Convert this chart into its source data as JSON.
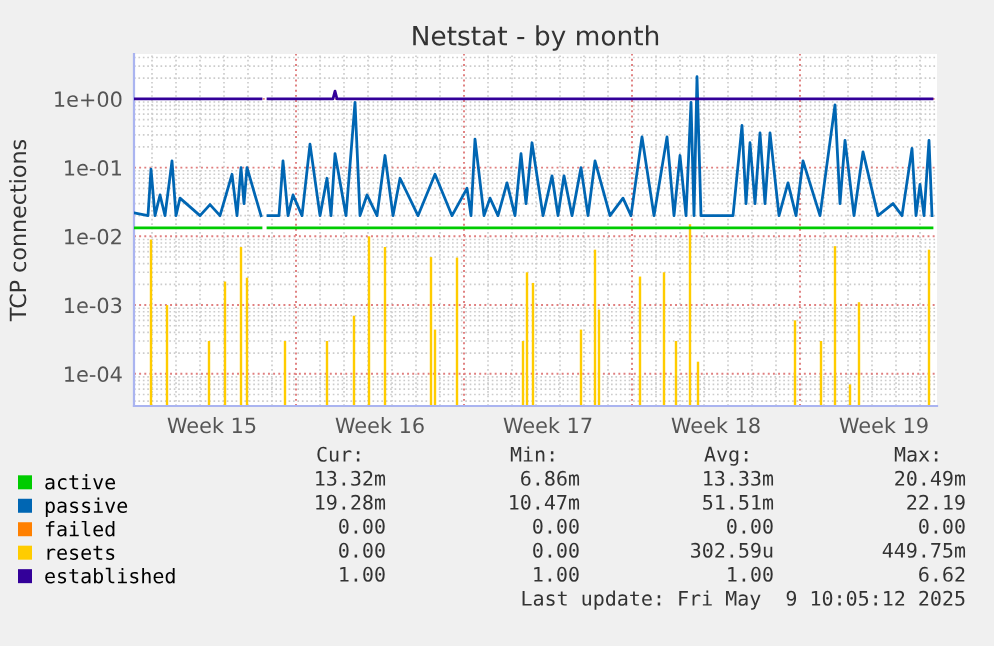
{
  "chart_data": {
    "type": "line",
    "title": "Netstat - by month",
    "ylabel": "TCP connections",
    "log": "y",
    "grid": true,
    "legend": "bottom left",
    "line_style": "solid",
    "marker": "none",
    "xlim": [
      "2025-04-06T06:00",
      "2025-05-09T17:00"
    ],
    "xticks": [
      {
        "value": "2025-04-09T12:00",
        "label": "Week 15"
      },
      {
        "value": "2025-04-13",
        "label": null
      },
      {
        "value": "2025-04-16T12:00",
        "label": "Week 16"
      },
      {
        "value": "2025-04-20",
        "label": null
      },
      {
        "value": "2025-04-23T12:00",
        "label": "Week 17"
      },
      {
        "value": "2025-04-27",
        "label": null
      },
      {
        "value": "2025-04-30T12:00",
        "label": "Week 18"
      },
      {
        "value": "2025-05-04",
        "label": null
      },
      {
        "value": "2025-05-07T12:00",
        "label": "Week 19"
      }
    ],
    "ylim": [
      3.4e-05,
      4.5
    ],
    "yticks": [
      {
        "value": 0.0001,
        "label": "1e-04"
      },
      {
        "value": 0.001,
        "label": "1e-03"
      },
      {
        "value": 0.01,
        "label": "1e-02"
      },
      {
        "value": 0.1,
        "label": "1e-01"
      },
      {
        "value": 1,
        "label": "1e+00"
      }
    ],
    "series": [
      {
        "name": "active",
        "color": "#00cc00",
        "x": [
          "2025-04-06T06:00",
          "2025-04-11T13:00",
          "2025-04-11T16:00",
          "2025-04-11T20:00",
          "2025-05-09T12:00"
        ],
        "values": [
          0.0133,
          0.0133,
          null,
          0.0133,
          0.0133
        ]
      },
      {
        "name": "passive",
        "color": "#0066b3",
        "x": [
          "2025-04-06T06:00",
          "2025-04-06T20:00",
          "2025-04-06T23:00",
          "2025-04-07T03:00",
          "2025-04-07T08:00",
          "2025-04-07T13:00",
          "2025-04-07T20:00",
          "2025-04-08T00:00",
          "2025-04-08T04:00",
          "2025-04-09T00:00",
          "2025-04-09T10:00",
          "2025-04-09T20:00",
          "2025-04-10T08:00",
          "2025-04-10T13:00",
          "2025-04-10T17:00",
          "2025-04-10T20:00",
          "2025-04-10T23:00",
          "2025-04-11T13:00",
          "2025-04-11T16:00",
          "2025-04-11T20:00",
          "2025-04-12T07:00",
          "2025-04-12T11:00",
          "2025-04-12T16:00",
          "2025-04-12T21:00",
          "2025-04-13T06:00",
          "2025-04-13T14:00",
          "2025-04-14T00:00",
          "2025-04-14T07:00",
          "2025-04-14T11:00",
          "2025-04-14T15:00",
          "2025-04-15T02:00",
          "2025-04-15T11:00",
          "2025-04-15T16:00",
          "2025-04-15T23:00",
          "2025-04-16T09:00",
          "2025-04-16T17:00",
          "2025-04-17T01:00",
          "2025-04-17T08:00",
          "2025-04-18T02:00",
          "2025-04-18T19:00",
          "2025-04-19T12:00",
          "2025-04-20T03:00",
          "2025-04-20T07:00",
          "2025-04-20T11:00",
          "2025-04-20T20:00",
          "2025-04-21T02:00",
          "2025-04-21T10:00",
          "2025-04-21T19:00",
          "2025-04-22T03:00",
          "2025-04-22T09:00",
          "2025-04-22T14:00",
          "2025-04-22T20:00",
          "2025-04-23T07:00",
          "2025-04-23T16:00",
          "2025-04-23T22:00",
          "2025-04-24T04:00",
          "2025-04-24T12:00",
          "2025-04-24T21:00",
          "2025-04-25T04:00",
          "2025-04-25T11:00",
          "2025-04-26T02:00",
          "2025-04-26T15:00",
          "2025-04-26T23:00",
          "2025-04-27T10:00",
          "2025-04-27T22:00",
          "2025-04-28T11:00",
          "2025-04-28T18:00",
          "2025-04-29T00:00",
          "2025-04-29T06:00",
          "2025-04-29T11:00",
          "2025-04-29T14:00",
          "2025-04-29T17:00",
          "2025-04-29T21:00",
          "2025-05-01T05:00",
          "2025-05-01T14:00",
          "2025-05-01T18:00",
          "2025-05-01T22:00",
          "2025-05-02T03:00",
          "2025-05-02T08:00",
          "2025-05-02T13:00",
          "2025-05-02T18:00",
          "2025-05-03T03:00",
          "2025-05-03T12:00",
          "2025-05-03T20:00",
          "2025-05-04T03:00",
          "2025-05-04T20:00",
          "2025-05-05T11:00",
          "2025-05-05T16:00",
          "2025-05-05T21:00",
          "2025-05-06T06:00",
          "2025-05-06T15:00",
          "2025-05-07T06:00",
          "2025-05-07T21:00",
          "2025-05-08T06:00",
          "2025-05-08T16:00",
          "2025-05-08T20:00",
          "2025-05-09T00:00",
          "2025-05-09T04:00",
          "2025-05-09T09:00",
          "2025-05-09T12:00"
        ],
        "values": [
          0.022,
          0.02,
          0.095,
          0.02,
          0.04,
          0.02,
          0.125,
          0.02,
          0.036,
          0.02,
          0.029,
          0.02,
          0.08,
          0.02,
          0.1,
          0.03,
          0.1,
          0.02,
          null,
          0.02,
          0.02,
          0.125,
          0.02,
          0.04,
          0.02,
          0.22,
          0.02,
          0.07,
          0.02,
          0.16,
          0.02,
          0.89,
          0.02,
          0.04,
          0.02,
          0.15,
          0.02,
          0.07,
          0.02,
          0.08,
          0.02,
          0.05,
          0.02,
          0.26,
          0.02,
          0.036,
          0.02,
          0.06,
          0.02,
          0.16,
          0.03,
          0.23,
          0.02,
          0.076,
          0.02,
          0.076,
          0.02,
          0.1,
          0.02,
          0.125,
          0.02,
          0.036,
          0.02,
          0.28,
          0.02,
          0.28,
          0.02,
          0.15,
          0.02,
          0.89,
          0.02,
          2.1,
          0.02,
          0.02,
          0.41,
          0.03,
          0.23,
          0.03,
          0.32,
          0.03,
          0.32,
          0.02,
          0.06,
          0.02,
          0.125,
          0.02,
          0.82,
          0.03,
          0.25,
          0.02,
          0.17,
          0.02,
          0.03,
          0.02,
          0.19,
          0.02,
          0.057,
          0.02,
          0.25,
          0.02
        ]
      },
      {
        "name": "failed",
        "color": "#ff8000"
      },
      {
        "name": "resets",
        "type": "bar",
        "color": "#ffcc00",
        "x": [
          "2025-04-06T23:00",
          "2025-04-07T15:00",
          "2025-04-09T09:00",
          "2025-04-10T01:00",
          "2025-04-10T17:00",
          "2025-04-10T23:00",
          "2025-04-12T13:00",
          "2025-04-14T07:00",
          "2025-04-15T10:00",
          "2025-04-16T01:00",
          "2025-04-16T17:00",
          "2025-04-18T15:00",
          "2025-04-18T19:00",
          "2025-04-19T17:00",
          "2025-04-22T11:00",
          "2025-04-22T15:00",
          "2025-04-22T21:00",
          "2025-04-24T21:00",
          "2025-04-25T11:00",
          "2025-04-25T15:00",
          "2025-04-27T08:00",
          "2025-04-28T08:00",
          "2025-04-28T20:00",
          "2025-04-29T10:00",
          "2025-04-29T18:00",
          "2025-05-03T19:00",
          "2025-05-04T21:00",
          "2025-05-05T11:00",
          "2025-05-06T02:00",
          "2025-05-06T11:00",
          "2025-05-09T09:00"
        ],
        "values": [
          0.009,
          0.001,
          0.0003,
          0.0022,
          0.007,
          0.0025,
          0.0003,
          0.0003,
          0.0007,
          0.01,
          0.007,
          0.005,
          0.00044,
          0.0049,
          0.0003,
          0.003,
          0.0021,
          0.00044,
          0.0064,
          0.00086,
          0.0026,
          0.003,
          0.0003,
          0.015,
          0.00015,
          0.0006,
          0.0003,
          0.0072,
          7e-05,
          0.0011,
          0.0064
        ]
      },
      {
        "name": "established",
        "color": "#330099",
        "x": [
          "2025-04-06T06:00",
          "2025-04-11T13:00",
          "2025-04-11T16:00",
          "2025-04-11T20:00",
          "2025-04-14T13:00",
          "2025-04-14T15:00",
          "2025-04-14T17:00",
          "2025-05-09T12:00"
        ],
        "values": [
          1,
          1,
          null,
          1,
          1,
          1.3,
          1,
          1
        ]
      }
    ],
    "annotations": [
      "Cur:",
      "Min:",
      "Avg:",
      "Max:",
      "13.32m",
      "6.86m",
      "13.33m",
      "20.49m",
      "19.28m",
      "10.47m",
      "51.51m",
      "22.19",
      "0.00",
      "0.00",
      "0.00",
      "0.00",
      "0.00",
      "0.00",
      "302.59u",
      "449.75m",
      "1.00",
      "1.00",
      "1.00",
      "6.62",
      "Last update: Fri May  9 10:05:12 2025"
    ]
  }
}
